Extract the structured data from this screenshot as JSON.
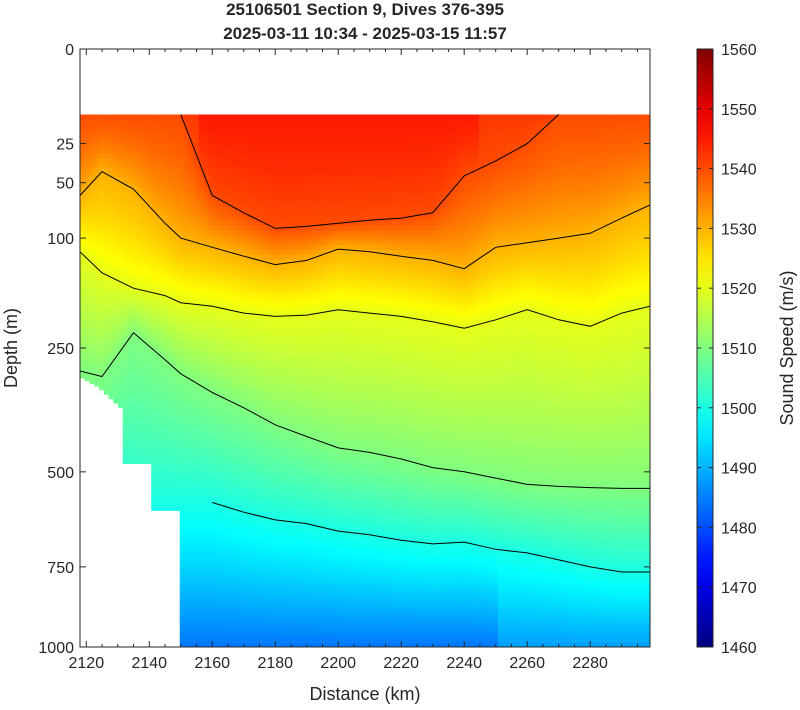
{
  "chart_data": {
    "type": "heatmap",
    "title": "25106501 Section 9, Dives 376-395",
    "subtitle": "2025-03-11 10:34 - 2025-03-15 11:57",
    "xlabel": "Distance (km)",
    "ylabel": "Depth (m)",
    "xlim": [
      2118,
      2299
    ],
    "ylim": [
      0,
      1000
    ],
    "y_scale": "sqrt",
    "x_ticks": [
      2120,
      2140,
      2160,
      2180,
      2200,
      2220,
      2240,
      2260,
      2280
    ],
    "y_ticks": [
      0,
      25,
      50,
      100,
      250,
      500,
      750,
      1000
    ],
    "colorbar": {
      "label": "Sound Speed (m/s)",
      "range": [
        1460,
        1560
      ],
      "ticks": [
        1460,
        1470,
        1480,
        1490,
        1500,
        1510,
        1520,
        1530,
        1540,
        1550,
        1560
      ],
      "colormap": "jet"
    },
    "data_top_depth": 12,
    "valid_max_depth": [
      {
        "x": 2118,
        "depth": 300
      },
      {
        "x": 2124,
        "depth": 320
      },
      {
        "x": 2131,
        "depth": 360
      },
      {
        "x": 2131,
        "depth": 480
      },
      {
        "x": 2140,
        "depth": 480
      },
      {
        "x": 2140,
        "depth": 595
      },
      {
        "x": 2150,
        "depth": 595
      },
      {
        "x": 2150,
        "depth": 1000
      },
      {
        "x": 2299,
        "depth": 1000
      }
    ],
    "x_profile": [
      2118,
      2125,
      2135,
      2145,
      2150,
      2160,
      2170,
      2180,
      2190,
      2200,
      2210,
      2220,
      2230,
      2240,
      2250,
      2260,
      2270,
      2280,
      2290,
      2299
    ],
    "contours": [
      {
        "level": 1540,
        "depths": [
          null,
          null,
          null,
          null,
          12,
          60,
          75,
          90,
          88,
          85,
          82,
          80,
          75,
          45,
          35,
          25,
          12,
          null,
          null,
          null
        ]
      },
      {
        "level": 1530,
        "depths": [
          60,
          42,
          55,
          85,
          100,
          110,
          120,
          130,
          125,
          112,
          115,
          120,
          125,
          135,
          110,
          105,
          100,
          95,
          80,
          68
        ]
      },
      {
        "level": 1520,
        "depths": [
          115,
          140,
          160,
          170,
          180,
          185,
          195,
          200,
          198,
          190,
          195,
          200,
          208,
          218,
          205,
          190,
          205,
          215,
          195,
          185
        ]
      },
      {
        "level": 1510,
        "depths": [
          290,
          300,
          225,
          270,
          295,
          330,
          360,
          395,
          420,
          445,
          455,
          470,
          490,
          500,
          515,
          530,
          535,
          538,
          540,
          540
        ]
      },
      {
        "level": 1500,
        "depths": [
          null,
          null,
          null,
          null,
          null,
          575,
          600,
          620,
          630,
          650,
          660,
          675,
          685,
          680,
          700,
          710,
          730,
          750,
          765,
          765
        ]
      }
    ],
    "background_fill": [
      {
        "depth": 12,
        "speed": 1524
      },
      {
        "depth": 300,
        "speed": 1510
      },
      {
        "depth": 1000,
        "speed": 1486
      }
    ]
  }
}
